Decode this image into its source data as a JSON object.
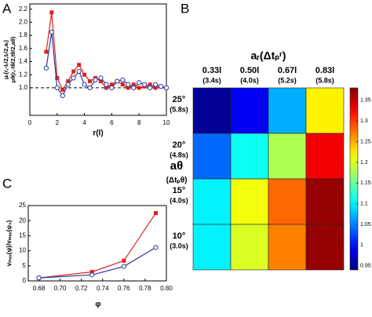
{
  "chart_data": [
    {
      "type": "line",
      "panel": "A",
      "x_label": "r(l)",
      "x": [
        1.2,
        1.6,
        2.0,
        2.4,
        2.8,
        3.2,
        3.6,
        4.0,
        4.4,
        4.8,
        5.2,
        5.6,
        6.0,
        6.4,
        6.8,
        7.2,
        7.6,
        8.0,
        8.4,
        8.8,
        9.2,
        9.6,
        10.0
      ],
      "series": [
        {
          "name": "μᵣ(r,-tᵣ/2,tᵣ/2,aᵣ)",
          "color": "#e0201e",
          "marker": "square",
          "values": [
            1.55,
            2.15,
            1.15,
            0.97,
            1.1,
            1.25,
            1.35,
            1.2,
            1.1,
            1.15,
            1.1,
            1.0,
            1.05,
            1.1,
            1.05,
            1.0,
            1.05,
            1.0,
            1.02,
            1.05,
            1.0,
            1.02,
            1.0
          ]
        },
        {
          "name": "μθ(r,-tθ/2,tθ/2,aθ)",
          "color": "#2b3a9a",
          "marker": "circle",
          "values": [
            1.3,
            1.85,
            1.0,
            0.88,
            1.05,
            1.15,
            1.25,
            1.05,
            1.0,
            1.12,
            1.15,
            1.05,
            1.0,
            1.1,
            1.12,
            1.05,
            1.0,
            1.08,
            1.05,
            1.0,
            1.05,
            1.02,
            1.0
          ]
        }
      ],
      "reference_line": 1,
      "xlim": [
        0,
        10
      ],
      "xticks": [
        0,
        2,
        4,
        6,
        8,
        10
      ],
      "ylim": [
        0.58,
        2.28
      ],
      "yticks": [
        {
          "value": 1,
          "label": "1.0"
        },
        1.2,
        1.4,
        1.6,
        1.8,
        {
          "value": 2,
          "label": "2.0"
        },
        2.2
      ]
    },
    {
      "type": "heatmap",
      "panel": "B",
      "x_label": "aᵣ(Δtₚʳ)",
      "y_label": [
        "aθ",
        "(Δtₚθ)"
      ],
      "x_categories": [
        {
          "label": "0.33l",
          "sub": "(3.4s)"
        },
        {
          "label": "0.50l",
          "sub": "(4.0s)"
        },
        {
          "label": "0.67l",
          "sub": "(5.2s)"
        },
        {
          "label": "0.83l",
          "sub": "(5.8s)"
        }
      ],
      "y_categories": [
        {
          "label": "25°",
          "sub": "(5.8s)"
        },
        {
          "label": "20°",
          "sub": "(4.8s)"
        },
        {
          "label": "15°",
          "sub": "(4.0s)"
        },
        {
          "label": "10°",
          "sub": "(3.0s)"
        }
      ],
      "values": [
        [
          0.95,
          0.99,
          1.07,
          1.22
        ],
        [
          1.04,
          1.11,
          1.18,
          1.33
        ],
        [
          1.1,
          1.21,
          1.28,
          1.37
        ],
        [
          1.1,
          1.2,
          1.27,
          1.37
        ]
      ],
      "colormap": "jet",
      "clim": [
        0.94,
        1.38
      ],
      "cticks": [
        0.95,
        1,
        1.05,
        1.1,
        1.15,
        1.2,
        1.25,
        1.3,
        1.35
      ]
    },
    {
      "type": "line",
      "panel": "C",
      "x_label": "φ",
      "y_label": "vₘₐₓ(φ)/vₘₐₓ(φ₀)",
      "x": [
        0.68,
        0.73,
        0.76,
        0.79
      ],
      "series": [
        {
          "name": null,
          "color": "#e0201e",
          "marker": "square",
          "values": [
            1,
            3,
            6.7,
            22.5
          ]
        },
        {
          "name": null,
          "color": "#2b3a9a",
          "marker": "circle",
          "values": [
            1,
            2,
            4.8,
            11.1
          ]
        }
      ],
      "xlim": [
        0.67,
        0.8
      ],
      "xticks": [
        0.68,
        {
          "value": 0.7,
          "label": "0.70"
        },
        0.72,
        0.74,
        0.76,
        0.78,
        {
          "value": 0.8,
          "label": "0.80"
        }
      ],
      "ylim": [
        0,
        25
      ],
      "yticks": [
        0,
        5,
        10,
        15,
        20,
        25
      ]
    }
  ]
}
